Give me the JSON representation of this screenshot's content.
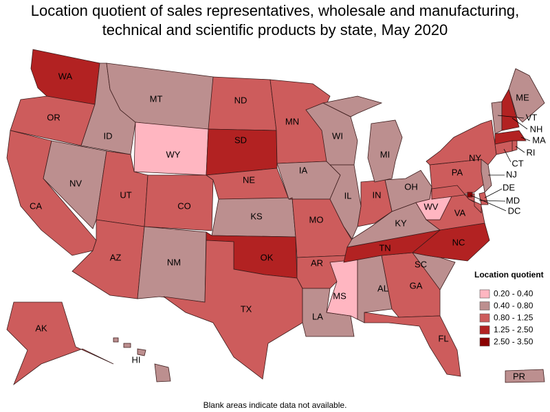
{
  "title": "Location quotient of sales representatives, wholesale and manufacturing, technical and scientific products by state, May 2020",
  "legend": {
    "title": "Location quotient",
    "bins": [
      {
        "label": "0.20 - 0.40",
        "color": "#ffb6c1"
      },
      {
        "label": "0.40 - 0.80",
        "color": "#bc8f8f"
      },
      {
        "label": "0.80 - 1.25",
        "color": "#cd5c5c"
      },
      {
        "label": "1.25 - 2.50",
        "color": "#b22222"
      },
      {
        "label": "2.50 - 3.50",
        "color": "#8b0000"
      }
    ]
  },
  "states": [
    {
      "label": "WA",
      "color": "#b22222"
    },
    {
      "label": "OR",
      "color": "#cd5c5c"
    },
    {
      "label": "CA",
      "color": "#cd5c5c"
    },
    {
      "label": "NV",
      "color": "#bc8f8f"
    },
    {
      "label": "ID",
      "color": "#bc8f8f"
    },
    {
      "label": "MT",
      "color": "#bc8f8f"
    },
    {
      "label": "WY",
      "color": "#ffb6c1"
    },
    {
      "label": "UT",
      "color": "#cd5c5c"
    },
    {
      "label": "CO",
      "color": "#cd5c5c"
    },
    {
      "label": "AZ",
      "color": "#cd5c5c"
    },
    {
      "label": "NM",
      "color": "#bc8f8f"
    },
    {
      "label": "ND",
      "color": "#cd5c5c"
    },
    {
      "label": "SD",
      "color": "#b22222"
    },
    {
      "label": "NE",
      "color": "#cd5c5c"
    },
    {
      "label": "KS",
      "color": "#bc8f8f"
    },
    {
      "label": "OK",
      "color": "#b22222"
    },
    {
      "label": "TX",
      "color": "#cd5c5c"
    },
    {
      "label": "MN",
      "color": "#cd5c5c"
    },
    {
      "label": "IA",
      "color": "#bc8f8f"
    },
    {
      "label": "MO",
      "color": "#cd5c5c"
    },
    {
      "label": "AR",
      "color": "#cd5c5c"
    },
    {
      "label": "LA",
      "color": "#bc8f8f"
    },
    {
      "label": "MS",
      "color": "#ffb6c1"
    },
    {
      "label": "AL",
      "color": "#bc8f8f"
    },
    {
      "label": "GA",
      "color": "#cd5c5c"
    },
    {
      "label": "FL",
      "color": "#cd5c5c"
    },
    {
      "label": "SC",
      "color": "#bc8f8f"
    },
    {
      "label": "NC",
      "color": "#b22222"
    },
    {
      "label": "TN",
      "color": "#b22222"
    },
    {
      "label": "KY",
      "color": "#bc8f8f"
    },
    {
      "label": "VA",
      "color": "#cd5c5c"
    },
    {
      "label": "WV",
      "color": "#ffb6c1"
    },
    {
      "label": "OH",
      "color": "#bc8f8f"
    },
    {
      "label": "IN",
      "color": "#cd5c5c"
    },
    {
      "label": "IL",
      "color": "#bc8f8f"
    },
    {
      "label": "WI",
      "color": "#bc8f8f"
    },
    {
      "label": "MI",
      "color": "#bc8f8f"
    },
    {
      "label": "PA",
      "color": "#cd5c5c"
    },
    {
      "label": "NY",
      "color": "#cd5c5c"
    },
    {
      "label": "ME",
      "color": "#bc8f8f"
    },
    {
      "label": "VT",
      "color": "#bc8f8f"
    },
    {
      "label": "NH",
      "color": "#b22222"
    },
    {
      "label": "MA",
      "color": "#b22222"
    },
    {
      "label": "RI",
      "color": "#cd5c5c"
    },
    {
      "label": "CT",
      "color": "#cd5c5c"
    },
    {
      "label": "NJ",
      "color": "#bc8f8f"
    },
    {
      "label": "DE",
      "color": "#cd5c5c"
    },
    {
      "label": "MD",
      "color": "#cd5c5c"
    },
    {
      "label": "DC",
      "color": "#8b0000"
    },
    {
      "label": "AK",
      "color": "#cd5c5c"
    },
    {
      "label": "HI",
      "color": "#bc8f8f"
    },
    {
      "label": "PR",
      "color": "#bc8f8f"
    }
  ],
  "footnote": "Blank areas indicate data not available."
}
